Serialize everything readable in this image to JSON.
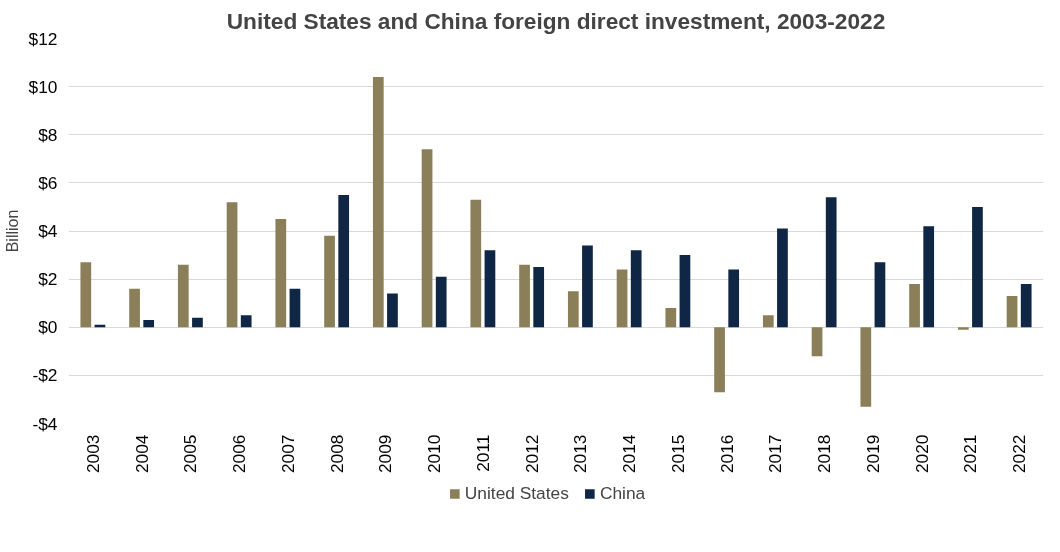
{
  "chart_data": {
    "type": "bar",
    "title": "United States and China foreign direct investment, 2003-2022",
    "ylabel": "Billion",
    "categories": [
      "2003",
      "2004",
      "2005",
      "2006",
      "2007",
      "2008",
      "2009",
      "2010",
      "2011",
      "2012",
      "2013",
      "2014",
      "2015",
      "2016",
      "2017",
      "2018",
      "2019",
      "2020",
      "2021",
      "2022"
    ],
    "series": [
      {
        "name": "United States",
        "color": "#8b7f5a",
        "values": [
          2.7,
          1.6,
          2.6,
          5.2,
          4.5,
          3.8,
          10.4,
          7.4,
          5.3,
          2.6,
          1.5,
          2.4,
          0.8,
          -2.7,
          0.5,
          -1.2,
          -3.3,
          1.8,
          -0.1,
          1.3
        ]
      },
      {
        "name": "China",
        "color": "#0f2744",
        "values": [
          0.1,
          0.3,
          0.4,
          0.5,
          1.6,
          5.5,
          1.4,
          2.1,
          3.2,
          2.5,
          3.4,
          3.2,
          3.0,
          2.4,
          4.1,
          5.4,
          2.7,
          4.2,
          5.0,
          1.8
        ]
      }
    ],
    "ylim": [
      -4,
      12
    ],
    "yticks": [
      {
        "value": -4,
        "label": "-$4"
      },
      {
        "value": -2,
        "label": "-$2"
      },
      {
        "value": 0,
        "label": "$0"
      },
      {
        "value": 2,
        "label": "$2"
      },
      {
        "value": 4,
        "label": "$4"
      },
      {
        "value": 6,
        "label": "$6"
      },
      {
        "value": 8,
        "label": "$8"
      },
      {
        "value": 10,
        "label": "$10"
      },
      {
        "value": 12,
        "label": "$12"
      }
    ],
    "grid": "y",
    "legend": "bottom"
  }
}
